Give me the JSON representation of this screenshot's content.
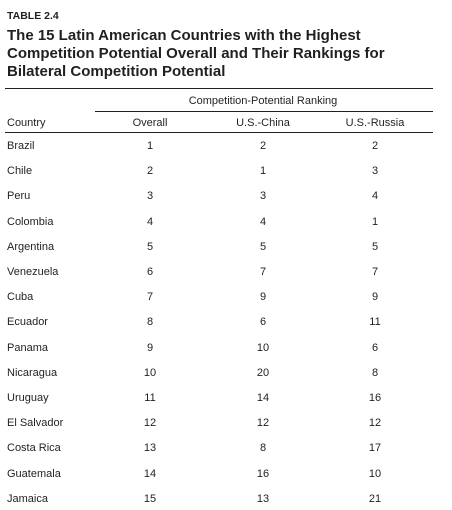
{
  "header": {
    "label": "TABLE 2.4",
    "title": "The 15 Latin American Countries with the Highest Competition Potential Overall and Their Rankings for Bilateral Competition Potential"
  },
  "table": {
    "spanner": "Competition-Potential Ranking",
    "columns": [
      "Country",
      "Overall",
      "U.S.-China",
      "U.S.-Russia"
    ],
    "rows": [
      [
        "Brazil",
        1,
        2,
        2
      ],
      [
        "Chile",
        2,
        1,
        3
      ],
      [
        "Peru",
        3,
        3,
        4
      ],
      [
        "Colombia",
        4,
        4,
        1
      ],
      [
        "Argentina",
        5,
        5,
        5
      ],
      [
        "Venezuela",
        6,
        7,
        7
      ],
      [
        "Cuba",
        7,
        9,
        9
      ],
      [
        "Ecuador",
        8,
        6,
        11
      ],
      [
        "Panama",
        9,
        10,
        6
      ],
      [
        "Nicaragua",
        10,
        20,
        8
      ],
      [
        "Uruguay",
        11,
        14,
        16
      ],
      [
        "El Salvador",
        12,
        12,
        12
      ],
      [
        "Costa Rica",
        13,
        8,
        17
      ],
      [
        "Guatemala",
        14,
        16,
        10
      ],
      [
        "Jamaica",
        15,
        13,
        21
      ]
    ]
  }
}
